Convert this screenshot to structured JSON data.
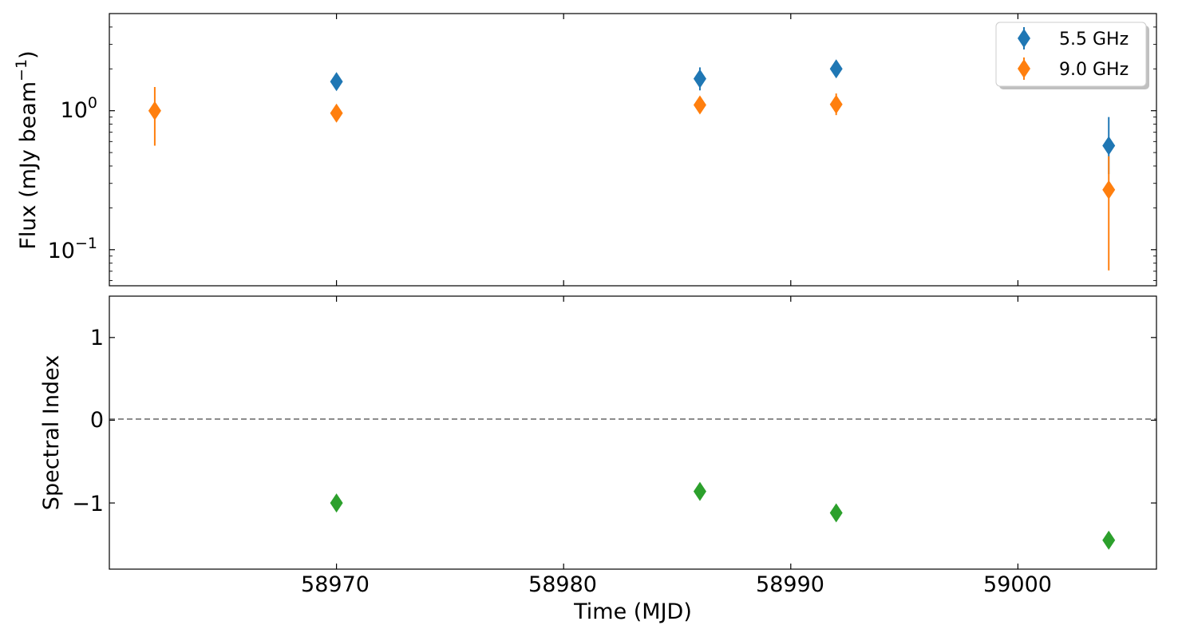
{
  "chart_data": [
    {
      "type": "scatter",
      "panel": "top",
      "ylabel": "Flux (mJy beam",
      "ylabel_sup": "−1",
      "ylabel_close": ")",
      "yscale": "log",
      "ylim": [
        0.055,
        5.0
      ],
      "xlim": [
        58960.0,
        59006.1
      ],
      "ytick_labels": [
        {
          "value": 1.0,
          "base": "10",
          "exp": "0"
        },
        {
          "value": 0.1,
          "base": "10",
          "exp": "−1"
        }
      ],
      "grid": false,
      "legend": {
        "placement": "top-right",
        "entries": [
          "5.5 GHz",
          "9.0 GHz"
        ]
      },
      "series": [
        {
          "name": "5.5 GHz",
          "color": "#1f77b4",
          "marker": "thin_diamond",
          "x": [
            58970,
            58986,
            58992,
            59004
          ],
          "y": [
            1.62,
            1.7,
            2.0,
            0.56
          ],
          "yerr_low": [
            1.45,
            1.4,
            1.8,
            0.35
          ],
          "yerr_high": [
            1.8,
            2.05,
            2.25,
            0.9
          ]
        },
        {
          "name": "9.0 GHz",
          "color": "#ff7f0e",
          "marker": "thin_diamond",
          "x": [
            58962,
            58970,
            58986,
            58992,
            59004
          ],
          "y": [
            1.0,
            0.96,
            1.1,
            1.11,
            0.27
          ],
          "yerr_low": [
            0.56,
            0.85,
            0.98,
            0.93,
            0.071
          ],
          "yerr_high": [
            1.48,
            1.08,
            1.25,
            1.33,
            0.47
          ]
        }
      ]
    },
    {
      "type": "scatter",
      "panel": "bottom",
      "ylabel": "Spectral Index",
      "xlabel": "Time (MJD)",
      "ylim": [
        -1.8,
        1.5
      ],
      "xlim": [
        58960.0,
        59006.1
      ],
      "yticks": [
        1,
        0,
        -1
      ],
      "ytick_labels": [
        "1",
        "0",
        "−1"
      ],
      "xticks": [
        58970,
        58980,
        58990,
        59000
      ],
      "xtick_labels": [
        "58970",
        "58980",
        "58990",
        "59000"
      ],
      "reference_line": {
        "y": 0,
        "style": "dashed",
        "color": "#666666"
      },
      "grid": false,
      "series": [
        {
          "color": "#2ca02c",
          "marker": "thin_diamond",
          "x": [
            58970,
            58986,
            58992,
            59004
          ],
          "y": [
            -1.0,
            -0.86,
            -1.12,
            -1.45
          ]
        }
      ]
    }
  ]
}
